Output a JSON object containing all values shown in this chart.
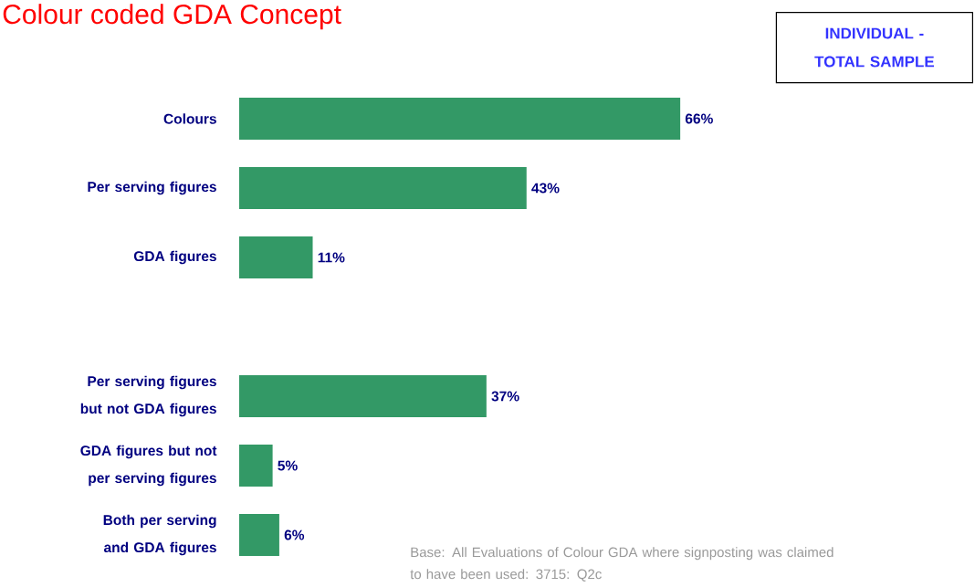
{
  "chart_data": {
    "type": "bar",
    "orientation": "horizontal",
    "title": "Colour coded GDA Concept",
    "categories": [
      "Colours",
      "Per serving figures",
      "GDA figures",
      null,
      "Per serving figures but not GDA figures",
      "GDA figures but not per serving figures",
      "Both per serving and GDA figures"
    ],
    "values": [
      66,
      43,
      11,
      null,
      37,
      5,
      6
    ],
    "value_labels": [
      "66%",
      "43%",
      "11%",
      null,
      "37%",
      "5%",
      "6%"
    ],
    "color": "#339966",
    "annotations": [
      "INDIVIDUAL - TOTAL SAMPLE",
      "Base: All Evaluations of Colour GDA where signposting was claimed to have been used: 3715: Q2c"
    ]
  }
}
